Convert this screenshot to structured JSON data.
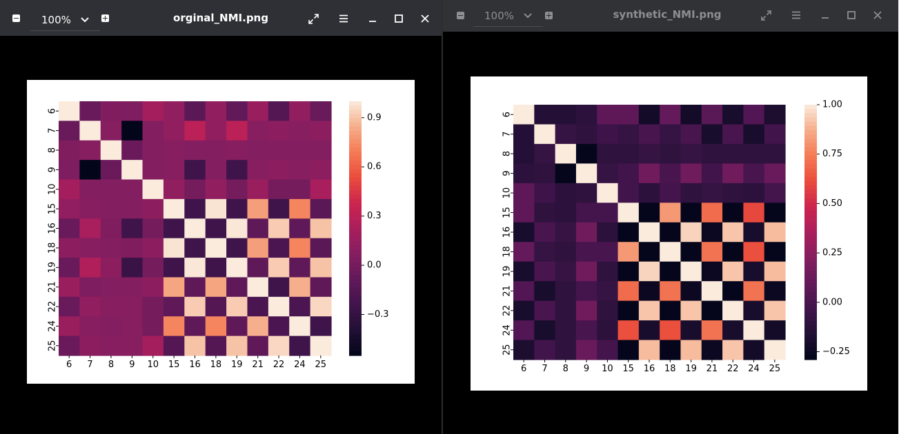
{
  "windows": [
    {
      "zoom": "100%",
      "title": "orginal_NMI.png",
      "chart_data": {
        "type": "heatmap",
        "categories": [
          "6",
          "7",
          "8",
          "9",
          "10",
          "15",
          "16",
          "18",
          "19",
          "21",
          "22",
          "24",
          "25"
        ],
        "values": [
          [
            1.0,
            -0.06,
            0.05,
            0.04,
            0.2,
            0.12,
            -0.12,
            0.12,
            -0.09,
            0.15,
            -0.15,
            0.12,
            -0.06
          ],
          [
            -0.06,
            1.0,
            0.08,
            -0.55,
            0.06,
            0.12,
            0.3,
            0.12,
            0.3,
            0.08,
            0.1,
            0.08,
            0.1
          ],
          [
            0.05,
            0.08,
            1.0,
            -0.05,
            0.06,
            0.08,
            0.06,
            0.06,
            0.08,
            0.06,
            0.06,
            0.06,
            0.06
          ],
          [
            0.04,
            -0.55,
            -0.05,
            1.0,
            0.06,
            0.08,
            -0.25,
            0.06,
            -0.25,
            0.08,
            0.1,
            0.08,
            0.1
          ],
          [
            0.2,
            0.06,
            0.06,
            0.06,
            1.0,
            0.12,
            0.0,
            0.12,
            0.0,
            0.15,
            0.0,
            0.0,
            0.22
          ],
          [
            0.12,
            0.08,
            0.06,
            0.06,
            0.1,
            1.0,
            -0.25,
            0.98,
            -0.25,
            0.8,
            -0.25,
            0.72,
            -0.12
          ],
          [
            -0.06,
            0.22,
            0.05,
            -0.25,
            0.0,
            -0.25,
            1.0,
            -0.25,
            0.99,
            -0.1,
            0.92,
            -0.1,
            0.9
          ],
          [
            0.1,
            0.08,
            0.06,
            0.05,
            0.1,
            0.98,
            -0.25,
            1.0,
            -0.25,
            0.8,
            -0.2,
            0.72,
            -0.12
          ],
          [
            -0.06,
            0.25,
            0.1,
            -0.28,
            0.0,
            -0.25,
            0.99,
            -0.25,
            1.0,
            -0.1,
            0.92,
            -0.1,
            0.9
          ],
          [
            0.15,
            0.04,
            0.06,
            0.06,
            0.1,
            0.82,
            -0.1,
            0.82,
            -0.1,
            1.0,
            -0.25,
            0.85,
            -0.1
          ],
          [
            -0.06,
            0.12,
            0.08,
            0.08,
            0.0,
            -0.1,
            0.92,
            -0.15,
            0.92,
            -0.2,
            1.0,
            -0.2,
            0.95
          ],
          [
            0.15,
            0.08,
            0.06,
            0.08,
            0.0,
            0.72,
            -0.1,
            0.72,
            -0.1,
            0.85,
            -0.2,
            1.0,
            -0.25
          ],
          [
            -0.05,
            0.1,
            0.08,
            0.08,
            0.2,
            -0.15,
            0.9,
            -0.15,
            0.9,
            -0.1,
            0.95,
            -0.25,
            1.0
          ]
        ],
        "colorbar_ticks": [
          "0.9",
          "0.6",
          "0.3",
          "0.0",
          "−0.3"
        ],
        "vmin": -0.55,
        "vmax": 1.0,
        "tick_values": [
          0.9,
          0.6,
          0.3,
          0.0,
          -0.3
        ]
      }
    },
    {
      "zoom": "100%",
      "title": "synthetic_NMI.png",
      "chart_data": {
        "type": "heatmap",
        "categories": [
          "6",
          "7",
          "8",
          "9",
          "10",
          "15",
          "16",
          "18",
          "19",
          "21",
          "22",
          "24",
          "25"
        ],
        "values": [
          [
            1.0,
            -0.15,
            -0.15,
            -0.12,
            0.08,
            0.08,
            -0.22,
            0.1,
            -0.22,
            0.06,
            -0.2,
            0.03,
            -0.18
          ],
          [
            -0.15,
            1.0,
            -0.08,
            -0.1,
            -0.05,
            -0.08,
            0.0,
            -0.08,
            0.0,
            -0.2,
            0.0,
            -0.2,
            -0.03
          ],
          [
            -0.15,
            -0.08,
            1.0,
            -0.28,
            -0.1,
            -0.1,
            -0.08,
            -0.1,
            -0.08,
            -0.1,
            -0.1,
            -0.1,
            -0.1
          ],
          [
            -0.12,
            -0.1,
            -0.28,
            1.0,
            -0.08,
            -0.03,
            0.15,
            0.0,
            0.15,
            -0.03,
            0.15,
            0.0,
            0.12
          ],
          [
            0.08,
            -0.05,
            -0.12,
            -0.1,
            1.0,
            -0.03,
            -0.12,
            -0.02,
            -0.1,
            -0.08,
            -0.1,
            -0.12,
            -0.02
          ],
          [
            0.08,
            -0.1,
            -0.12,
            -0.02,
            -0.02,
            1.0,
            -0.28,
            0.82,
            -0.28,
            0.7,
            -0.28,
            0.6,
            -0.28
          ],
          [
            -0.2,
            0.0,
            -0.08,
            0.15,
            -0.12,
            -0.28,
            1.0,
            -0.28,
            0.95,
            -0.25,
            0.92,
            -0.2,
            0.9
          ],
          [
            0.1,
            -0.08,
            -0.1,
            0.0,
            0.0,
            0.82,
            -0.28,
            1.0,
            -0.28,
            0.72,
            -0.28,
            0.62,
            -0.28
          ],
          [
            -0.2,
            0.0,
            -0.08,
            0.15,
            -0.1,
            -0.28,
            0.95,
            -0.28,
            1.0,
            -0.25,
            0.92,
            -0.2,
            0.9
          ],
          [
            0.03,
            -0.2,
            -0.1,
            -0.02,
            -0.08,
            0.7,
            -0.25,
            0.72,
            -0.25,
            1.0,
            -0.28,
            0.72,
            -0.25
          ],
          [
            -0.2,
            0.0,
            -0.1,
            0.15,
            -0.1,
            -0.28,
            0.92,
            -0.28,
            0.92,
            -0.28,
            1.0,
            -0.2,
            0.92
          ],
          [
            0.03,
            -0.2,
            -0.1,
            0.0,
            -0.12,
            0.62,
            -0.2,
            0.62,
            -0.2,
            0.72,
            -0.2,
            1.0,
            -0.22
          ],
          [
            -0.18,
            -0.03,
            -0.1,
            0.12,
            -0.02,
            -0.28,
            0.9,
            -0.28,
            0.9,
            -0.25,
            0.92,
            -0.22,
            1.0
          ]
        ],
        "colorbar_ticks": [
          "1.00",
          "0.75",
          "0.50",
          "0.25",
          "0.00",
          "−0.25"
        ],
        "vmin": -0.29,
        "vmax": 1.0,
        "tick_values": [
          1.0,
          0.75,
          0.5,
          0.25,
          0.0,
          -0.25
        ]
      }
    }
  ]
}
